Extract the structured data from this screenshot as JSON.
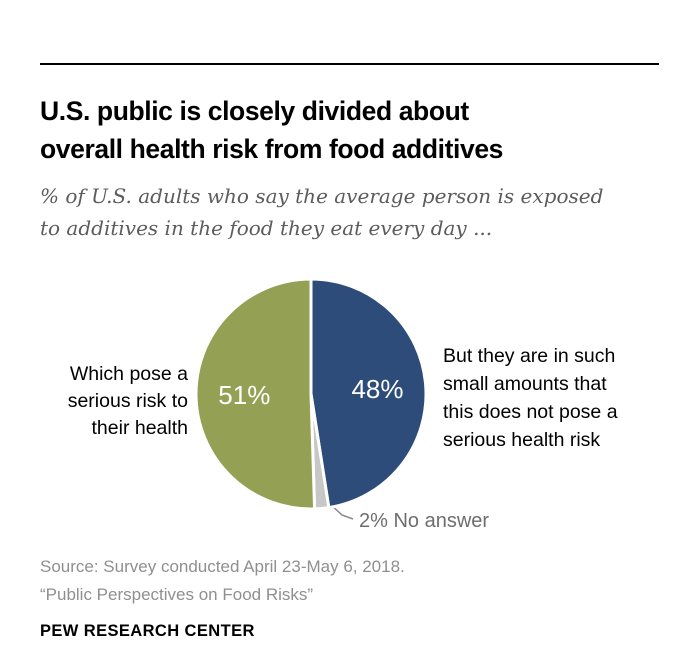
{
  "header": {
    "title_lines": [
      "U.S. public is closely divided about",
      "overall health risk from food additives"
    ],
    "subtitle_lines": [
      "% of U.S. adults who say the average person is exposed",
      "to additives in the food they eat every day ..."
    ]
  },
  "chart_data": {
    "type": "pie",
    "title": "U.S. public is closely divided about overall health risk from food additives",
    "units": "% of U.S. adults",
    "direction": "clockwise",
    "start_angle_deg": 0,
    "slices": [
      {
        "id": "no-serious-risk",
        "label": "But they are in such small amounts that this does not pose a serious health risk",
        "value": 48,
        "pie_label": "48%",
        "color": "#2e4c7a"
      },
      {
        "id": "no-answer",
        "label": "No answer",
        "value": 2,
        "pie_label": "",
        "color": "#c7c7c7"
      },
      {
        "id": "serious-risk",
        "label": "Which pose a serious risk to their health",
        "value": 51,
        "pie_label": "51%",
        "color": "#94a054"
      }
    ],
    "callouts": {
      "left": "Which pose a serious risk to their health",
      "right": "But they are in such small amounts that this does not pose a serious health risk",
      "no_answer": "2% No answer"
    },
    "stroke_color": "#ffffff",
    "leader_line_color": "#8a8a8a"
  },
  "footer": {
    "source_line1": "Source: Survey conducted April 23-May 6, 2018.",
    "source_line2": "“Public Perspectives on Food Risks”",
    "brand": "PEW RESEARCH CENTER"
  }
}
